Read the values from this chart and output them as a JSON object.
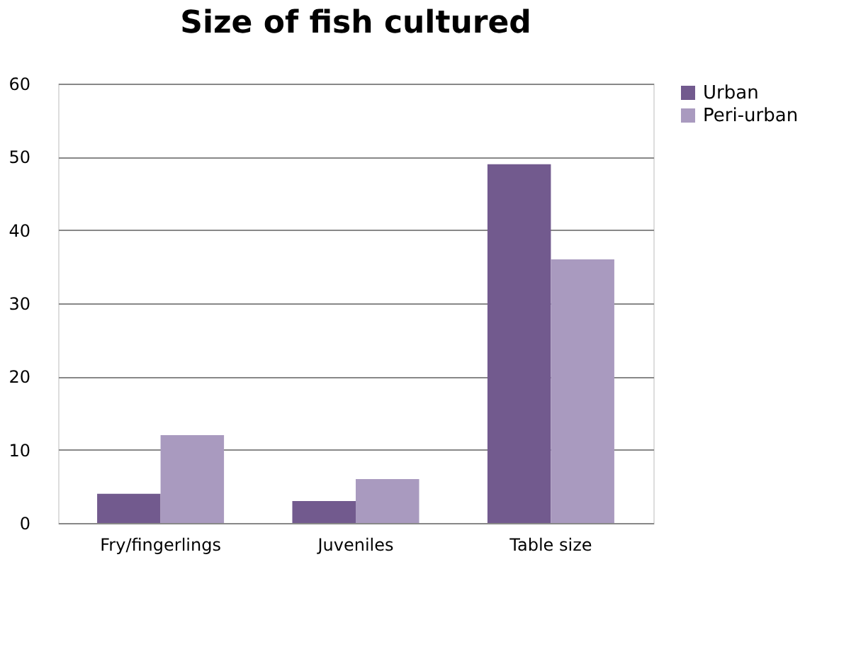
{
  "chart_data": {
    "type": "bar",
    "title": "Size of fish cultured",
    "categories": [
      "Fry/fingerlings",
      "Juveniles",
      "Table size"
    ],
    "series": [
      {
        "name": "Urban",
        "color": "#725a8e",
        "values": [
          4,
          3,
          49
        ]
      },
      {
        "name": "Peri-urban",
        "color": "#a99abf",
        "values": [
          12,
          6,
          36
        ]
      }
    ],
    "ylim": [
      0,
      60
    ],
    "yticks": [
      0,
      10,
      20,
      30,
      40,
      50,
      60
    ],
    "grid": "y",
    "legend": "right"
  }
}
